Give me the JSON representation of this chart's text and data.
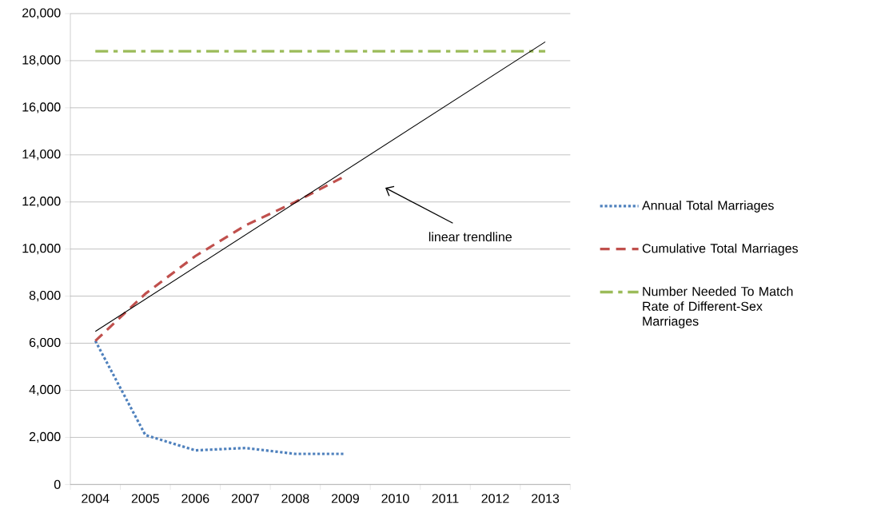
{
  "chart_data": {
    "type": "line",
    "categories": [
      "2004",
      "2005",
      "2006",
      "2007",
      "2008",
      "2009",
      "2010",
      "2011",
      "2012",
      "2013"
    ],
    "series": [
      {
        "name": "Annual Total Marriages",
        "color": "#4f81bd",
        "line_style": "dotted",
        "values": [
          6100,
          2100,
          1450,
          1550,
          1300,
          1300,
          null,
          null,
          null,
          null
        ]
      },
      {
        "name": "Cumulative Total Marriages",
        "color": "#c0504d",
        "line_style": "dashed",
        "values": [
          6100,
          8100,
          9700,
          11000,
          12000,
          13100,
          null,
          null,
          null,
          null
        ]
      },
      {
        "name": "Number Needed To Match Rate of Different-Sex Marriages",
        "color": "#9bbb59",
        "line_style": "dashdot",
        "values": [
          18400,
          18400,
          18400,
          18400,
          18400,
          18400,
          18400,
          18400,
          18400,
          18400
        ]
      },
      {
        "color": "#000000",
        "line_style": "solid",
        "values": [
          6500,
          null,
          null,
          null,
          null,
          null,
          null,
          null,
          null,
          18800
        ]
      }
    ],
    "ylim": [
      0,
      20000
    ],
    "yticks": [
      {
        "value": 0,
        "label": "0"
      },
      {
        "value": 2000,
        "label": "2,000"
      },
      {
        "value": 4000,
        "label": "4,000"
      },
      {
        "value": 6000,
        "label": "6,000"
      },
      {
        "value": 8000,
        "label": "8,000"
      },
      {
        "value": 10000,
        "label": "10,000"
      },
      {
        "value": 12000,
        "label": "12,000"
      },
      {
        "value": 14000,
        "label": "14,000"
      },
      {
        "value": 16000,
        "label": "16,000"
      },
      {
        "value": 18000,
        "label": "18,000"
      },
      {
        "value": 20000,
        "label": "20,000"
      }
    ],
    "annotations": [
      "linear trendline"
    ],
    "grid": "y",
    "legend": "right"
  }
}
